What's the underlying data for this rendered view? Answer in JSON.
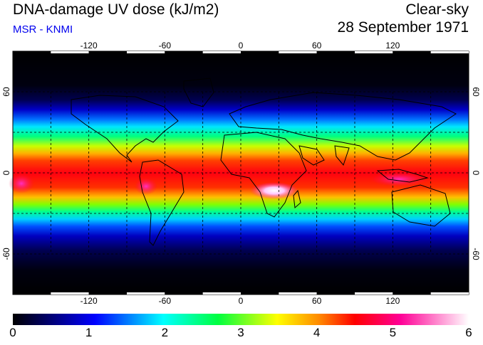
{
  "header": {
    "title": "DNA-damage UV dose (kJ/m2)",
    "subtitle": "MSR - KNMI",
    "subtitle_color": "#0000ee",
    "mode": "Clear-sky",
    "date": "28 September 1971"
  },
  "map": {
    "projection": "equirectangular",
    "lon_range": [
      -180,
      180
    ],
    "lat_range": [
      -90,
      90
    ],
    "grid_step_lon": 30,
    "grid_step_lat": 30,
    "lon_tick_labels": [
      "-120",
      "-60",
      "0",
      "60",
      "120"
    ],
    "lat_tick_labels": [
      "60",
      "0",
      "-60"
    ]
  },
  "colorbar": {
    "min": 0,
    "max": 6,
    "tick_labels": [
      "0",
      "1",
      "2",
      "3",
      "4",
      "5",
      "6"
    ],
    "colors": [
      "#000000",
      "#00008b",
      "#0000ff",
      "#00c8ff",
      "#00ff64",
      "#ffff00",
      "#ff8c00",
      "#ff0000",
      "#ff0096",
      "#ffffff"
    ]
  }
}
